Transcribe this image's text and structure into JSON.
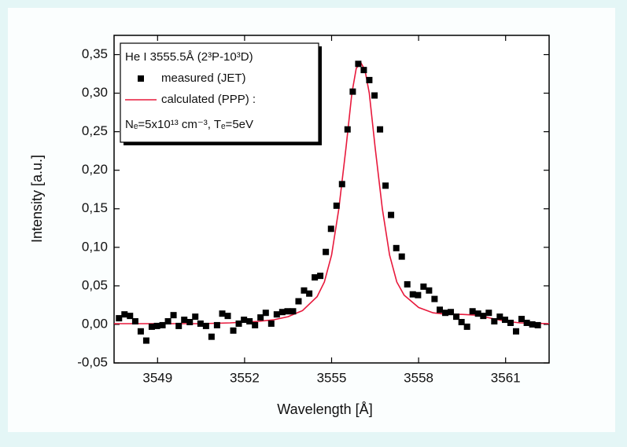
{
  "chart_data": {
    "type": "scatter",
    "xlabel": "Wavelength [Å]",
    "ylabel": "Intensity [a.u.]",
    "legend_title": "He I  3555.5Å (2³P-10³D)",
    "legend_note": "Nₑ=5x10¹³ cm⁻³, Tₑ=5eV",
    "legend": "upper left",
    "xlim": [
      3547.5,
      3562.5
    ],
    "xticks": [
      3549,
      3552,
      3555,
      3558,
      3561
    ],
    "ylim": [
      -0.05,
      0.375
    ],
    "yticks": [
      {
        "value": -0.05,
        "label": "-0,05"
      },
      {
        "value": 0,
        "label": "0,00"
      },
      {
        "value": 0.05,
        "label": "0,05"
      },
      {
        "value": 0.1,
        "label": "0,10"
      },
      {
        "value": 0.15,
        "label": "0,15"
      },
      {
        "value": 0.2,
        "label": "0,20"
      },
      {
        "value": 0.25,
        "label": "0,25"
      },
      {
        "value": 0.3,
        "label": "0,30"
      },
      {
        "value": 0.35,
        "label": "0,35"
      }
    ],
    "series": [
      {
        "name": "measured (JET)",
        "mode": "markers",
        "color": "#000000",
        "x": [
          3547.67,
          3547.86,
          3548.05,
          3548.23,
          3548.42,
          3548.61,
          3548.8,
          3548.98,
          3549.17,
          3549.36,
          3549.55,
          3549.73,
          3549.92,
          3550.11,
          3550.3,
          3550.48,
          3550.67,
          3550.86,
          3551.05,
          3551.23,
          3551.42,
          3551.61,
          3551.8,
          3551.98,
          3552.17,
          3552.36,
          3552.55,
          3552.73,
          3552.92,
          3553.11,
          3553.3,
          3553.48,
          3553.67,
          3553.86,
          3554.05,
          3554.23,
          3554.42,
          3554.61,
          3554.8,
          3554.98,
          3555.17,
          3555.36,
          3555.55,
          3555.73,
          3555.92,
          3556.11,
          3556.3,
          3556.48,
          3556.67,
          3556.86,
          3557.05,
          3557.23,
          3557.42,
          3557.61,
          3557.8,
          3557.98,
          3558.17,
          3558.36,
          3558.55,
          3558.73,
          3558.92,
          3559.11,
          3559.3,
          3559.48,
          3559.67,
          3559.86,
          3560.05,
          3560.23,
          3560.42,
          3560.61,
          3560.8,
          3560.98,
          3561.17,
          3561.36,
          3561.55,
          3561.73,
          3561.92,
          3562.11
        ],
        "values": [
          0.008,
          0.013,
          0.011,
          0.004,
          -0.009,
          -0.021,
          -0.003,
          -0.002,
          -0.001,
          0.004,
          0.012,
          -0.002,
          0.006,
          0.003,
          0.01,
          0.001,
          -0.002,
          -0.016,
          -0.001,
          0.014,
          0.011,
          -0.008,
          0.001,
          0.006,
          0.004,
          -0.001,
          0.009,
          0.015,
          0.001,
          0.013,
          0.016,
          0.017,
          0.017,
          0.03,
          0.044,
          0.04,
          0.061,
          0.063,
          0.094,
          0.124,
          0.154,
          0.182,
          0.253,
          0.302,
          0.338,
          0.33,
          0.317,
          0.297,
          0.253,
          0.18,
          0.142,
          0.099,
          0.088,
          0.052,
          0.039,
          0.038,
          0.049,
          0.044,
          0.033,
          0.019,
          0.015,
          0.016,
          0.01,
          0.003,
          -0.003,
          0.017,
          0.014,
          0.011,
          0.015,
          0.004,
          0.01,
          0.006,
          0.002,
          -0.009,
          0.007,
          0.002,
          0,
          -0.001
        ]
      },
      {
        "name": "calculated (PPP) :",
        "mode": "line",
        "color": "#e8193c",
        "x": [
          3547.5,
          3548.5,
          3549.5,
          3550.5,
          3551.5,
          3552.5,
          3553,
          3553.5,
          3554,
          3554.5,
          3554.75,
          3555,
          3555.25,
          3555.5,
          3555.7,
          3555.85,
          3556,
          3556.15,
          3556.3,
          3556.5,
          3556.75,
          3557,
          3557.25,
          3557.5,
          3558,
          3558.5,
          3559,
          3559.5,
          3560,
          3560.5,
          3561,
          3561.5,
          3562.5
        ],
        "values": [
          0.001,
          0.001,
          0.001,
          0.001,
          0.002,
          0.004,
          0.006,
          0.01,
          0.018,
          0.036,
          0.055,
          0.09,
          0.15,
          0.23,
          0.3,
          0.332,
          0.34,
          0.33,
          0.3,
          0.23,
          0.15,
          0.09,
          0.055,
          0.038,
          0.022,
          0.015,
          0.013,
          0.013,
          0.012,
          0.008,
          0.004,
          0.002,
          0.001
        ]
      }
    ]
  }
}
